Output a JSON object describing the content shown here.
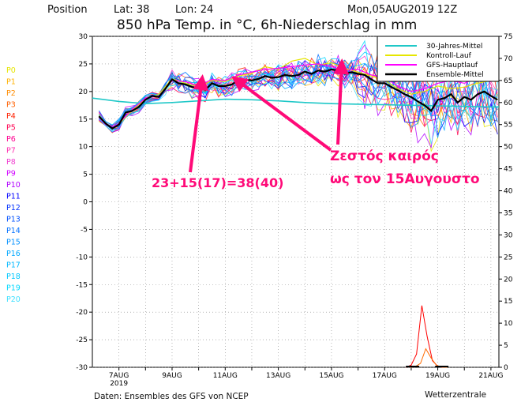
{
  "header": {
    "position_label": "Position",
    "lat_label": "Lat: 38",
    "lon_label": "Lon: 24",
    "run_label": "Mon,05AUG2019 12Z"
  },
  "footer": {
    "source_label": "Daten: Ensembles des GFS von NCEP",
    "brand_label": "Wetterzentrale"
  },
  "annotations": {
    "arrow_color": "#ff0a78",
    "greek_line1": "Ζεστός καιρός",
    "greek_line2": "ως τον 15Αυγουστο",
    "sum_label": "23+15(17)=38(40)"
  },
  "ensemble_labels": [
    {
      "name": "P0",
      "color": "#e6e600"
    },
    {
      "name": "P1",
      "color": "#ffb000"
    },
    {
      "name": "P2",
      "color": "#ff8c00"
    },
    {
      "name": "P3",
      "color": "#ff6000"
    },
    {
      "name": "P4",
      "color": "#ff2000"
    },
    {
      "name": "P5",
      "color": "#ff0050"
    },
    {
      "name": "P6",
      "color": "#ff0090"
    },
    {
      "name": "P7",
      "color": "#ff30b0"
    },
    {
      "name": "P8",
      "color": "#f040d0"
    },
    {
      "name": "P9",
      "color": "#d000ff"
    },
    {
      "name": "P10",
      "color": "#b000ff"
    },
    {
      "name": "P11",
      "color": "#0000ff"
    },
    {
      "name": "P12",
      "color": "#0030ff"
    },
    {
      "name": "P13",
      "color": "#0050ff"
    },
    {
      "name": "P14",
      "color": "#0070ff"
    },
    {
      "name": "P15",
      "color": "#0090ff"
    },
    {
      "name": "P16",
      "color": "#00a8ff"
    },
    {
      "name": "P17",
      "color": "#00b8ff"
    },
    {
      "name": "P18",
      "color": "#00c8ff"
    },
    {
      "name": "P19",
      "color": "#00d8ff"
    },
    {
      "name": "P20",
      "color": "#40e0ff"
    }
  ],
  "chart_data": {
    "type": "line",
    "title": "850 hPa Temp. in °C, 6h-Niederschlag in mm",
    "ylim": [
      -30,
      30
    ],
    "yticks": [
      -30,
      -25,
      -20,
      -15,
      -10,
      -5,
      0,
      5,
      10,
      15,
      20,
      25,
      30
    ],
    "y2ticks": [
      0,
      5,
      10,
      15,
      20,
      25,
      30,
      35,
      40,
      45,
      50,
      55,
      60,
      65,
      70,
      75
    ],
    "xlim": [
      6,
      21.3
    ],
    "grid": true,
    "xtick_labels": [
      {
        "day": 7,
        "label": "7AUG",
        "sub": "2019"
      },
      {
        "day": 9,
        "label": "9AUG",
        "sub": ""
      },
      {
        "day": 11,
        "label": "11AUG",
        "sub": ""
      },
      {
        "day": 13,
        "label": "13AUG",
        "sub": ""
      },
      {
        "day": 15,
        "label": "15AUG",
        "sub": ""
      },
      {
        "day": 17,
        "label": "17AUG",
        "sub": ""
      },
      {
        "day": 19,
        "label": "19AUG",
        "sub": ""
      },
      {
        "day": 21,
        "label": "21AUG",
        "sub": ""
      }
    ],
    "legend": {
      "placement": "top-right",
      "entries": [
        {
          "label": "30-Jahres-Mittel",
          "color": "#20c8c8"
        },
        {
          "label": "Kontroll-Lauf",
          "color": "#e6e600"
        },
        {
          "label": "GFS-Hauptlauf",
          "color": "#ff00ff"
        },
        {
          "label": "Ensemble-Mittel",
          "color": "#000000"
        }
      ]
    },
    "series": [
      {
        "name": "30-Jahres-Mittel",
        "color": "#20c8c8",
        "x": [
          6,
          7,
          8,
          9,
          10,
          11,
          12,
          13,
          14,
          15,
          16,
          17,
          18,
          19,
          20,
          21,
          21.3
        ],
        "values": [
          18.8,
          18.2,
          17.8,
          18.0,
          18.3,
          18.6,
          18.5,
          18.3,
          18.0,
          17.8,
          17.7,
          17.6,
          17.5,
          17.4,
          17.3,
          17.2,
          17.2
        ]
      },
      {
        "name": "Ensemble-Mittel",
        "color": "#000000",
        "x": [
          6.25,
          6.5,
          6.75,
          7,
          7.25,
          7.5,
          7.75,
          8,
          8.25,
          8.5,
          8.75,
          9,
          9.25,
          9.5,
          9.75,
          10,
          10.25,
          10.5,
          10.75,
          11,
          11.25,
          11.5,
          11.75,
          12,
          12.25,
          12.5,
          12.75,
          13,
          13.25,
          13.5,
          13.75,
          14,
          14.25,
          14.5,
          14.75,
          15,
          15.25,
          15.5,
          15.75,
          16,
          16.25,
          16.5,
          16.75,
          17,
          17.25,
          17.5,
          17.75,
          18,
          18.25,
          18.5,
          18.75,
          19,
          19.25,
          19.5,
          19.75,
          20,
          20.25,
          20.5,
          20.75,
          21,
          21.25
        ],
        "values": [
          15.5,
          14.2,
          13.3,
          14.0,
          16.2,
          16.5,
          17.2,
          18.5,
          19.2,
          19.0,
          20.5,
          22.2,
          21.5,
          21.3,
          20.8,
          20.5,
          20.3,
          21.5,
          21.0,
          21.0,
          21.3,
          22.0,
          22.2,
          22.0,
          22.3,
          22.8,
          22.5,
          22.6,
          23.0,
          22.8,
          23.0,
          23.6,
          23.2,
          23.8,
          23.6,
          24.0,
          23.8,
          23.2,
          23.5,
          23.2,
          23.0,
          22.2,
          21.5,
          21.5,
          20.8,
          20.2,
          19.5,
          19.0,
          18.2,
          17.5,
          16.5,
          18.5,
          18.8,
          19.5,
          18.0,
          19.0,
          18.5,
          19.5,
          20.0,
          19.2,
          18.5
        ]
      },
      {
        "name": "GFS-Hauptlauf",
        "color": "#ff00ff",
        "x": [
          6.25,
          6.5,
          6.75,
          7,
          7.5,
          8,
          8.5,
          9,
          9.5,
          10,
          10.5,
          11,
          11.5,
          12,
          12.5,
          13,
          13.5,
          14,
          14.5,
          15,
          15.5,
          16,
          16.5,
          17,
          17.5,
          18,
          18.5,
          19,
          19.5,
          20,
          20.5,
          21,
          21.25
        ],
        "values": [
          15.3,
          14.0,
          13.5,
          14.2,
          16.8,
          18.8,
          19.2,
          22.0,
          21.8,
          21.0,
          22.2,
          22.0,
          23.0,
          23.5,
          24.0,
          24.2,
          24.5,
          24.8,
          25.0,
          24.5,
          23.8,
          24.0,
          23.0,
          22.5,
          21.0,
          20.0,
          20.5,
          21.5,
          22.0,
          21.5,
          22.5,
          23.0,
          22.8
        ]
      },
      {
        "name": "Kontroll-Lauf",
        "color": "#e6e600",
        "x": [
          6.25,
          6.5,
          6.75,
          7,
          7.5,
          8,
          8.5,
          9,
          9.5,
          10,
          10.5,
          11,
          11.5,
          12,
          12.5,
          13,
          13.5,
          14,
          14.5,
          15,
          15.5,
          16,
          16.5,
          17,
          17.5,
          18,
          18.5,
          19,
          19.5,
          20,
          20.5,
          21,
          21.25
        ],
        "values": [
          15.6,
          14.3,
          13.2,
          14.1,
          16.6,
          18.6,
          19.5,
          22.3,
          21.5,
          20.8,
          22.0,
          21.8,
          22.8,
          23.3,
          24.5,
          24.0,
          25.5,
          26.0,
          24.8,
          25.2,
          24.2,
          23.5,
          22.8,
          22.0,
          20.5,
          19.5,
          20.0,
          21.0,
          20.5,
          20.8,
          21.5,
          22.0,
          21.8
        ]
      }
    ],
    "precipitation": {
      "name": "6h-Niederschlag",
      "color": "#ff0000",
      "x": [
        17.8,
        18.0,
        18.2,
        18.4,
        18.6,
        18.8,
        19.0,
        19.2
      ],
      "values": [
        0,
        0.5,
        3,
        14,
        7,
        1.5,
        0.2,
        0
      ]
    }
  }
}
